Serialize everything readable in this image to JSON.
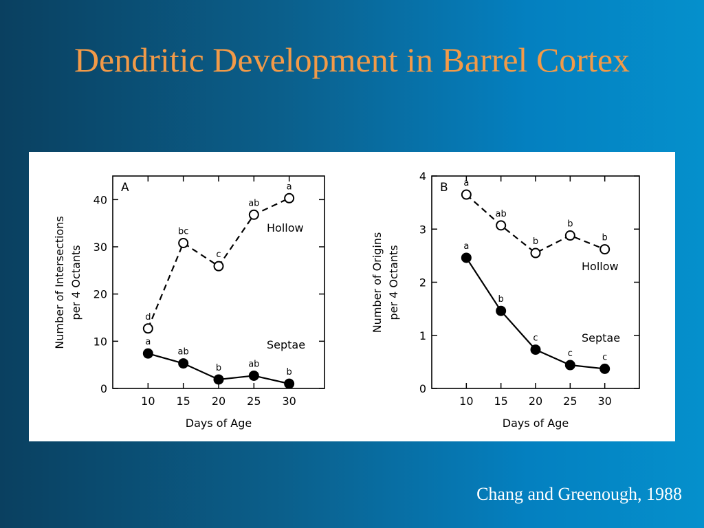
{
  "slide": {
    "title": "Dendritic Development in Barrel Cortex",
    "citation": "Chang and Greenough, 1988"
  },
  "chart_data": [
    {
      "type": "line",
      "panel_label": "A",
      "xlabel": "Days of Age",
      "ylabel_lines": [
        "Number of Intersections",
        "per 4 Octants"
      ],
      "x": [
        10,
        15,
        20,
        25,
        30
      ],
      "xlim": [
        5,
        35
      ],
      "ylim": [
        0,
        45
      ],
      "yticks": [
        0,
        10,
        20,
        30,
        40
      ],
      "series": [
        {
          "name": "Hollow",
          "style": "dashed",
          "marker": "open",
          "values": [
            12.7,
            30.8,
            25.9,
            36.8,
            40.3
          ],
          "letters": [
            "d",
            "bc",
            "c",
            "ab",
            "a"
          ]
        },
        {
          "name": "Septae",
          "style": "solid",
          "marker": "filled",
          "values": [
            7.4,
            5.3,
            1.9,
            2.7,
            1.0
          ],
          "letters": [
            "a",
            "ab",
            "b",
            "ab",
            "b"
          ]
        }
      ]
    },
    {
      "type": "line",
      "panel_label": "B",
      "xlabel": "Days of Age",
      "ylabel_lines": [
        "Number of Origins",
        "per 4 Octants"
      ],
      "x": [
        10,
        15,
        20,
        25,
        30
      ],
      "xlim": [
        5,
        35
      ],
      "ylim": [
        0,
        4
      ],
      "yticks": [
        0,
        1,
        2,
        3,
        4
      ],
      "series": [
        {
          "name": "Hollow",
          "style": "dashed",
          "marker": "open",
          "values": [
            3.65,
            3.07,
            2.55,
            2.88,
            2.62
          ],
          "letters": [
            "a",
            "ab",
            "b",
            "b",
            "b"
          ]
        },
        {
          "name": "Septae",
          "style": "solid",
          "marker": "filled",
          "values": [
            2.46,
            1.46,
            0.73,
            0.44,
            0.37
          ],
          "letters": [
            "a",
            "b",
            "c",
            "c",
            "c"
          ]
        }
      ]
    }
  ]
}
